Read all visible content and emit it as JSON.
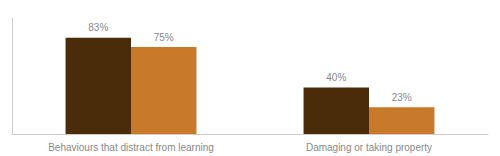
{
  "chart_data": {
    "type": "bar",
    "categories": [
      "Behaviours that distract from learning",
      "Damaging or taking property"
    ],
    "series": [
      {
        "color": "#4a2c0a",
        "values": [
          83,
          40
        ],
        "value_labels": [
          "83%",
          "40%"
        ]
      },
      {
        "color": "#c8792a",
        "values": [
          75,
          23
        ],
        "value_labels": [
          "75%",
          "23%"
        ]
      }
    ],
    "ylim": [
      0,
      100
    ],
    "grid": false,
    "data_labels": true,
    "tick_labels": "x"
  }
}
